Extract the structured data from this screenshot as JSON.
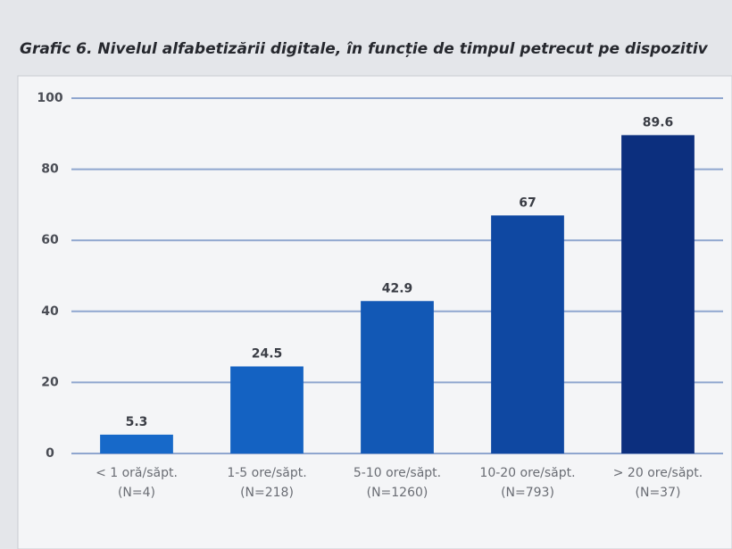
{
  "chart_data": {
    "type": "bar",
    "title": "Grafic 6. Nivelul alfabetizării digitale, în funcție de timpul petrecut pe dispozitiv",
    "categories": [
      [
        "< 1 oră/săpt.",
        "(N=4)"
      ],
      [
        "1-5 ore/săpt.",
        "(N=218)"
      ],
      [
        "5-10 ore/săpt.",
        "(N=1260)"
      ],
      [
        "10-20 ore/săpt.",
        "(N=793)"
      ],
      [
        "> 20 ore/săpt.",
        "(N=37)"
      ]
    ],
    "values": [
      5.3,
      24.5,
      42.9,
      67,
      89.6
    ],
    "colors": [
      "#1769c9",
      "#1462c2",
      "#1258b5",
      "#0f48a2",
      "#0c2f7e"
    ],
    "ylim": [
      0,
      100
    ],
    "yticks": [
      0,
      20,
      40,
      60,
      80,
      100
    ],
    "grid": true
  }
}
